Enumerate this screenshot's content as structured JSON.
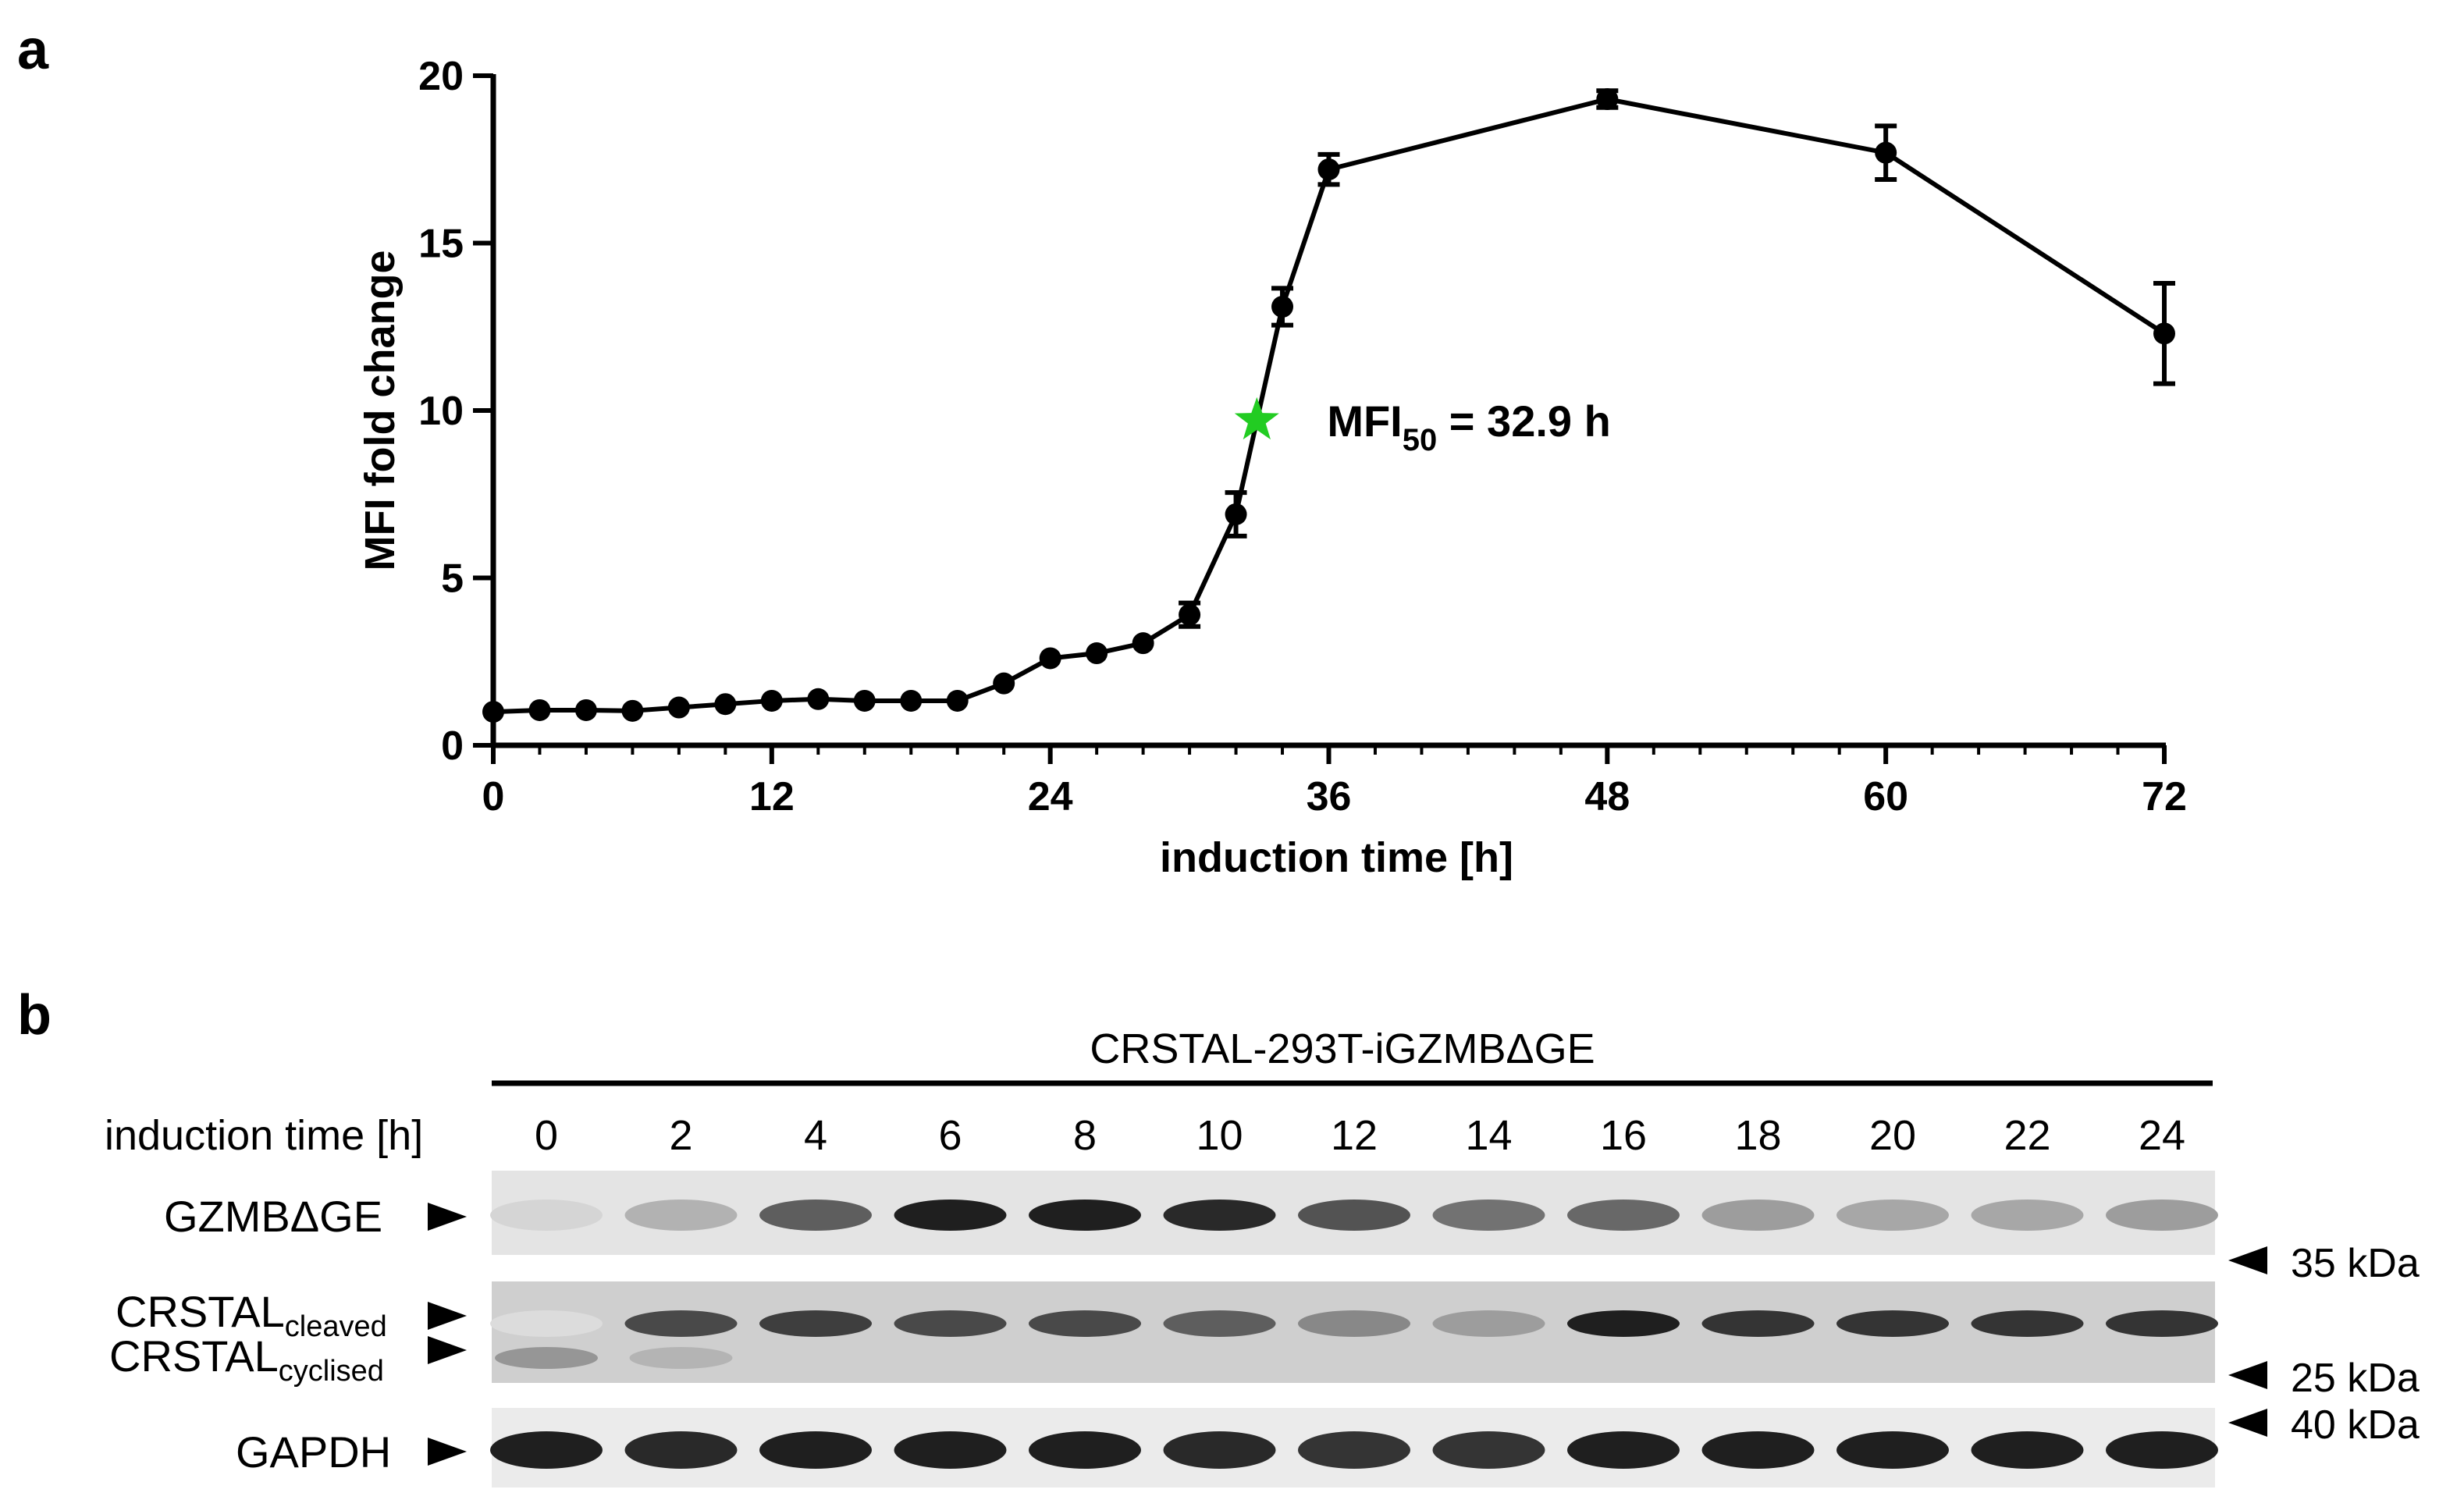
{
  "panel_a": {
    "label": "a"
  },
  "panel_b": {
    "label": "b",
    "cell_line": "CRSTAL-293T-iGZMBΔGE",
    "lane_header": "induction time [h]",
    "lanes": [
      "0",
      "2",
      "4",
      "6",
      "8",
      "10",
      "12",
      "14",
      "16",
      "18",
      "20",
      "22",
      "24"
    ],
    "blots": [
      {
        "label": "GZMBΔGE",
        "intensities": [
          0.08,
          0.25,
          0.65,
          0.95,
          0.95,
          0.9,
          0.7,
          0.55,
          0.6,
          0.35,
          0.3,
          0.3,
          0.35
        ]
      },
      {
        "label_main": "CRSTAL",
        "label_sub_top": "cleaved",
        "label_sub_bottom": "cyclised",
        "intensities": [
          0.05,
          0.75,
          0.8,
          0.75,
          0.75,
          0.65,
          0.45,
          0.35,
          0.95,
          0.85,
          0.85,
          0.85,
          0.85
        ],
        "lower_band": [
          0.3,
          0.15,
          0,
          0,
          0,
          0,
          0,
          0,
          0,
          0,
          0,
          0,
          0
        ]
      },
      {
        "label": "GAPDH",
        "intensities": [
          0.95,
          0.9,
          0.95,
          0.95,
          0.95,
          0.9,
          0.85,
          0.85,
          0.95,
          0.95,
          0.95,
          0.95,
          0.95
        ]
      }
    ],
    "markers": [
      "35 kDa",
      "25 kDa",
      "40 kDa"
    ]
  },
  "chart_data": {
    "type": "line",
    "xlabel": "induction time [h]",
    "ylabel": "MFI fold change",
    "xlim": [
      0,
      72
    ],
    "ylim": [
      0,
      20
    ],
    "xticks": [
      0,
      12,
      24,
      36,
      48,
      60,
      72
    ],
    "yticks": [
      0,
      5,
      10,
      15,
      20
    ],
    "series": [
      {
        "x": [
          0,
          2,
          4,
          6,
          8,
          10,
          12,
          14,
          16,
          18,
          20,
          22,
          24,
          26,
          28,
          30,
          32,
          34,
          36,
          48,
          60,
          72
        ],
        "y": [
          1.0,
          1.05,
          1.05,
          1.03,
          1.13,
          1.23,
          1.33,
          1.38,
          1.33,
          1.33,
          1.33,
          1.85,
          2.6,
          2.75,
          3.05,
          3.9,
          6.9,
          13.1,
          17.2,
          19.3,
          17.7,
          12.3
        ],
        "err": [
          0.05,
          0.05,
          0.05,
          0.05,
          0.05,
          0.05,
          0.08,
          0.08,
          0.05,
          0.05,
          0.05,
          0.1,
          0.1,
          0.1,
          0.1,
          0.35,
          0.65,
          0.55,
          0.45,
          0.25,
          0.8,
          1.5
        ]
      }
    ],
    "annotation": {
      "x": 32.9,
      "y": 9.7,
      "marker": "star",
      "color": "#22cc22",
      "text_main": "MFI",
      "text_sub": "50",
      "text_rest": " = 32.9 h"
    },
    "grid": false
  }
}
